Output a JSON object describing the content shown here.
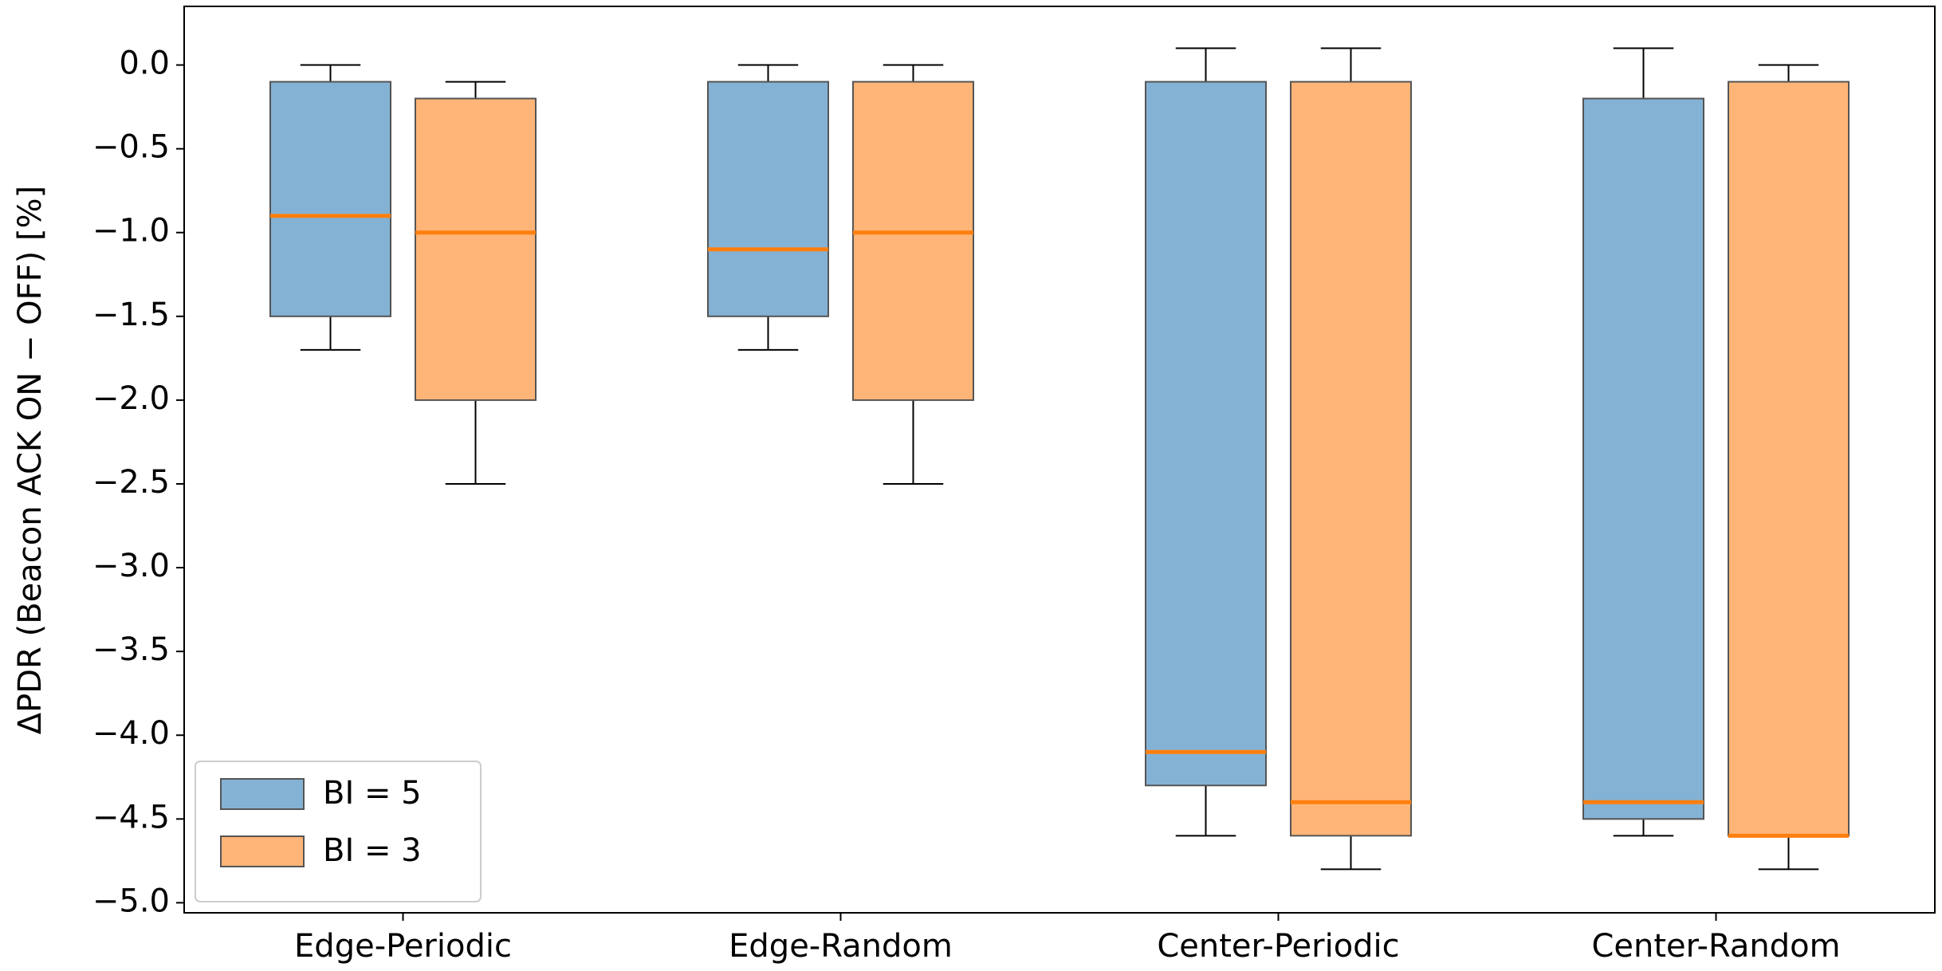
{
  "chart_data": {
    "type": "box",
    "y_label": "ΔPDR (Beacon ACK ON − OFF) [%]",
    "categories": [
      "Edge-Periodic",
      "Edge-Random",
      "Center-Periodic",
      "Center-Random"
    ],
    "series": [
      {
        "name": "BI = 5",
        "color": "#84b2d4",
        "median_color": "#ff7f0e",
        "boxes": [
          {
            "low": -1.7,
            "q1": -1.5,
            "median": -0.9,
            "q3": -0.1,
            "high": 0.0
          },
          {
            "low": -1.7,
            "q1": -1.5,
            "median": -1.1,
            "q3": -0.1,
            "high": 0.0
          },
          {
            "low": -4.6,
            "q1": -4.3,
            "median": -4.1,
            "q3": -0.1,
            "high": 0.1
          },
          {
            "low": -4.6,
            "q1": -4.5,
            "median": -4.4,
            "q3": -0.2,
            "high": 0.1
          }
        ]
      },
      {
        "name": "BI = 3",
        "color": "#ffb577",
        "median_color": "#ff7f0e",
        "boxes": [
          {
            "low": -2.5,
            "q1": -2.0,
            "median": -1.0,
            "q3": -0.2,
            "high": -0.1
          },
          {
            "low": -2.5,
            "q1": -2.0,
            "median": -1.0,
            "q3": -0.1,
            "high": 0.0
          },
          {
            "low": -4.8,
            "q1": -4.6,
            "median": -4.4,
            "q3": -0.1,
            "high": 0.1
          },
          {
            "low": -4.8,
            "q1": -4.6,
            "median": -4.6,
            "q3": -0.1,
            "high": 0.0
          }
        ]
      }
    ],
    "ylim": [
      -5.06,
      0.35
    ],
    "yticks": [
      {
        "value": 0.0,
        "label": "0.0"
      },
      {
        "value": -0.5,
        "label": "−0.5"
      },
      {
        "value": -1.0,
        "label": "−1.0"
      },
      {
        "value": -1.5,
        "label": "−1.5"
      },
      {
        "value": -2.0,
        "label": "−2.0"
      },
      {
        "value": -2.5,
        "label": "−2.5"
      },
      {
        "value": -3.0,
        "label": "−3.0"
      },
      {
        "value": -3.5,
        "label": "−3.5"
      },
      {
        "value": -4.0,
        "label": "−4.0"
      },
      {
        "value": -4.5,
        "label": "−4.5"
      },
      {
        "value": -5.0,
        "label": "−5.0"
      }
    ],
    "legend": "lower left"
  }
}
